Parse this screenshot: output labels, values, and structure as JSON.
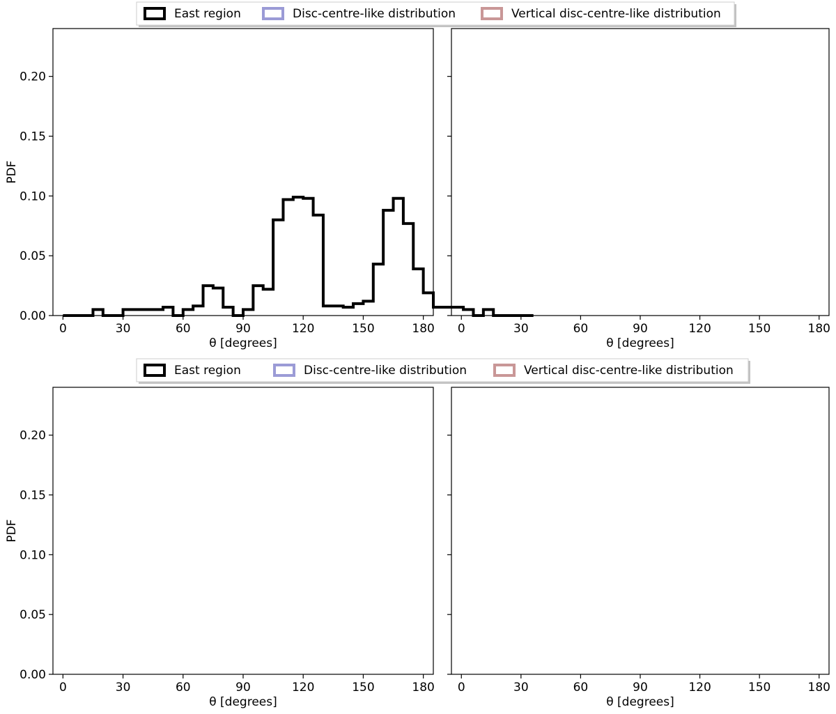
{
  "colors": {
    "black": "#000000",
    "blue": "#9b9bd6",
    "pink": "#c99797"
  },
  "chart_data": [
    {
      "type": "histogram-step",
      "title": "",
      "legend": [
        "East region",
        "Disc-centre-like distribution",
        "Vertical disc-centre-like distribution"
      ],
      "xlabel": "θ [degrees]",
      "ylabel": "PDF",
      "xlim": [
        -5,
        185
      ],
      "ylim": [
        0,
        0.24
      ],
      "xticks": [
        "0",
        "30",
        "60",
        "90",
        "120",
        "150",
        "180"
      ],
      "yticks": [
        "0.00",
        "0.05",
        "0.10",
        "0.15",
        "0.20"
      ],
      "bin_edges_start": 0,
      "bin_width": 5,
      "series": [
        {
          "name": "East region",
          "color": "#000000",
          "values": [
            0.0,
            0.0,
            0.0,
            0.005,
            0.0,
            0.0,
            0.005,
            0.005,
            0.005,
            0.005,
            0.007,
            0.0,
            0.005,
            0.008,
            0.025,
            0.023,
            0.007,
            0.0,
            0.005,
            0.025,
            0.022,
            0.08,
            0.097,
            0.099,
            0.098,
            0.084,
            0.008,
            0.008,
            0.007,
            0.01,
            0.012,
            0.043,
            0.088,
            0.098,
            0.077,
            0.039,
            0.019,
            0.007,
            0.007,
            0.007,
            0.005,
            0.0,
            0.005,
            0.0,
            0.0,
            0.0,
            0.0
          ]
        }
      ]
    }
  ]
}
